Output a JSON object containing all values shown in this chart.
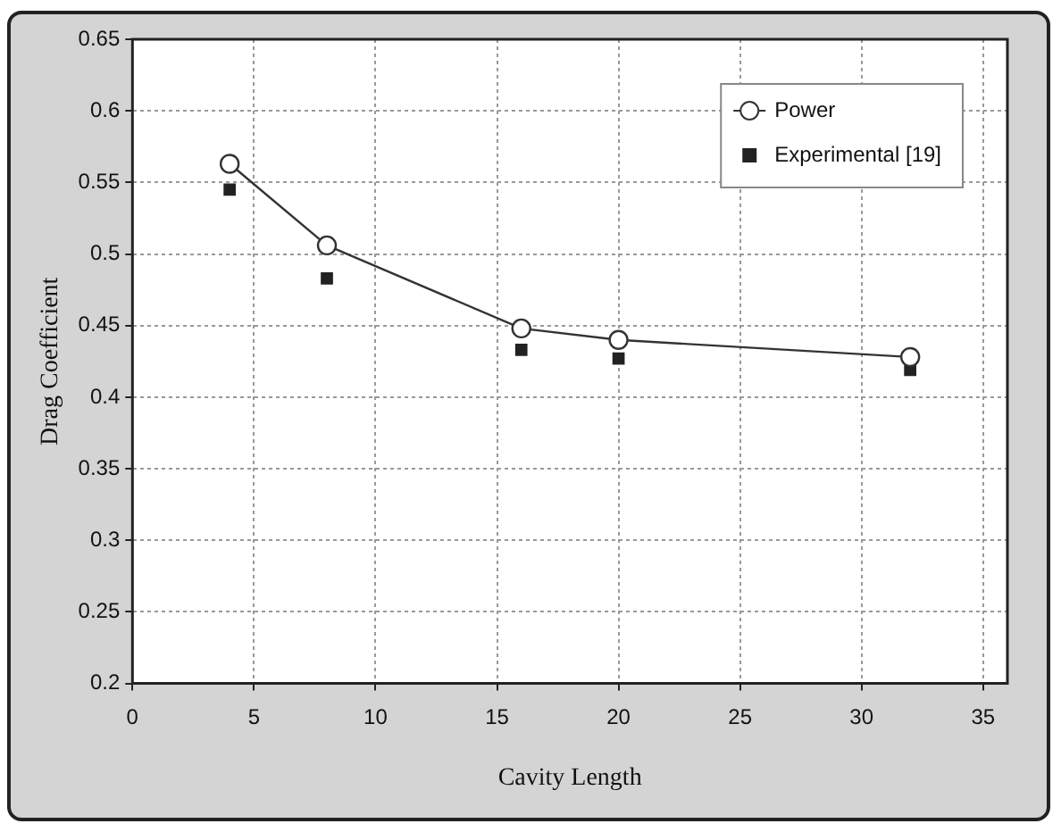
{
  "chart_data": {
    "type": "scatter",
    "xlabel": "Cavity Length",
    "ylabel": "Drag Coefficient",
    "xlim": [
      0,
      36
    ],
    "xticks": [
      0,
      5,
      10,
      15,
      20,
      25,
      30,
      35
    ],
    "ylim": [
      0.2,
      0.65
    ],
    "yticks": [
      0.2,
      0.25,
      0.3,
      0.35,
      0.4,
      0.45,
      0.5,
      0.55,
      0.6,
      0.65
    ],
    "grid": true,
    "legend": "top right",
    "series": [
      {
        "name": "Power",
        "type": "line",
        "marker": "circle",
        "color": "#333333",
        "x": [
          4,
          8,
          16,
          20,
          32
        ],
        "values": [
          0.563,
          0.506,
          0.448,
          0.44,
          0.428
        ]
      },
      {
        "name": "Experimental [19]",
        "marker": "square",
        "color": "#222222",
        "x": [
          4,
          8,
          16,
          20,
          32
        ],
        "values": [
          0.545,
          0.483,
          0.433,
          0.427,
          0.419
        ]
      }
    ]
  }
}
